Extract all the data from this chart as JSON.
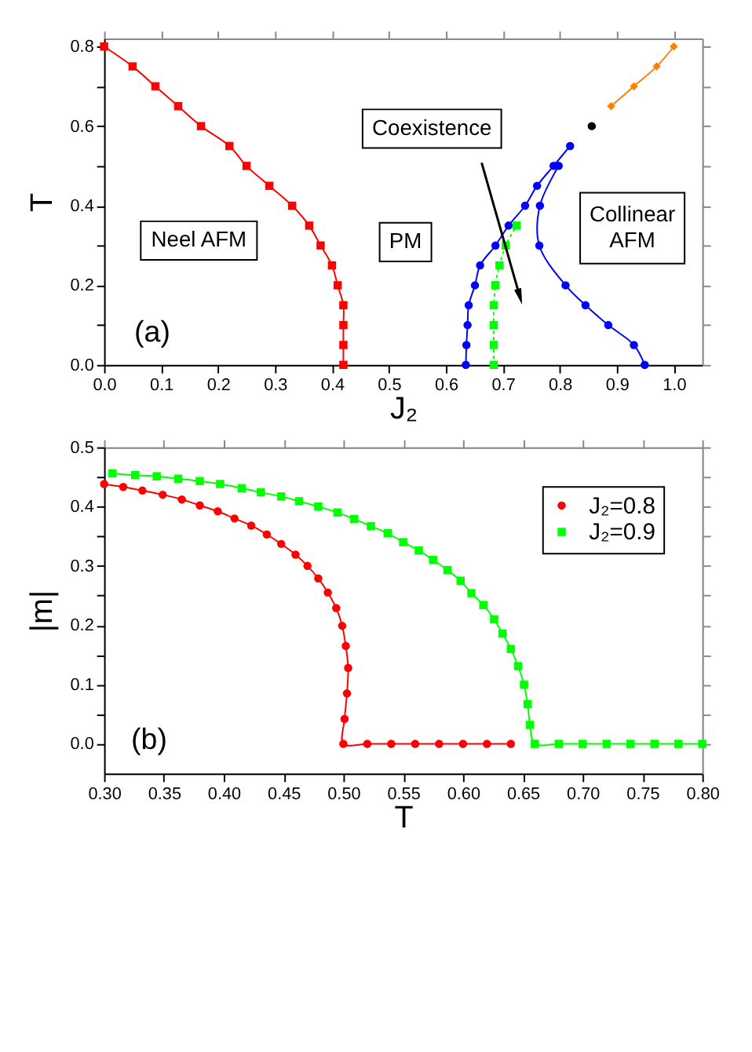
{
  "chart_data": [
    {
      "type": "line",
      "xlabel": "J₂",
      "ylabel": "T",
      "xlim": [
        0,
        1.05
      ],
      "ylim": [
        0,
        0.82
      ],
      "xticks": [
        {
          "value": 0,
          "label": "0.0"
        },
        0.1,
        0.2,
        0.3,
        0.4,
        0.5,
        0.6,
        0.7,
        0.8,
        0.9,
        {
          "value": 1,
          "label": "1.0"
        }
      ],
      "yticks": [
        {
          "value": 0,
          "label": "0.0"
        },
        {
          "value": 0.1,
          "label": null
        },
        0.2,
        {
          "value": 0.3,
          "label": null
        },
        0.4,
        {
          "value": 0.5,
          "label": null
        },
        0.6,
        {
          "value": 0.7,
          "label": null
        },
        0.8
      ],
      "annotations": [
        "Coexistence",
        "Neel AFM",
        "PM",
        "Collinear\nAFM",
        "(a)"
      ],
      "series": [
        {
          "color": "#ff0000",
          "marker": "square",
          "x": [
            0,
            0.05,
            0.09,
            0.13,
            0.17,
            0.22,
            0.25,
            0.29,
            0.33,
            0.36,
            0.38,
            0.4,
            0.41,
            0.42,
            0.42,
            0.42,
            0.42
          ],
          "values": [
            0.8,
            0.75,
            0.7,
            0.65,
            0.6,
            0.55,
            0.5,
            0.45,
            0.4,
            0.35,
            0.3,
            0.25,
            0.2,
            0.15,
            0.1,
            0.05,
            0
          ]
        },
        {
          "color": "#0000ff",
          "marker": "circle",
          "x": [
            0.635,
            0.636,
            0.638,
            0.64,
            0.651,
            0.66,
            0.687,
            0.71,
            0.739,
            0.76,
            0.789,
            0.818
          ],
          "values": [
            0,
            0.05,
            0.1,
            0.15,
            0.2,
            0.25,
            0.3,
            0.35,
            0.4,
            0.45,
            0.5,
            0.55
          ]
        },
        {
          "color": "#0000ff",
          "marker": "circle",
          "x": [
            0.798,
            0.765,
            0.764,
            0.81,
            0.845,
            0.885,
            0.93,
            0.949
          ],
          "values": [
            0.5,
            0.4,
            0.3,
            0.2,
            0.15,
            0.1,
            0.05,
            0
          ]
        },
        {
          "color": "#00ff00",
          "marker": "square",
          "line_style": "dotted",
          "x": [
            0.684,
            0.684,
            0.684,
            0.684,
            0.687,
            0.694,
            0.705,
            0.724
          ],
          "values": [
            0,
            0.05,
            0.1,
            0.15,
            0.2,
            0.25,
            0.3,
            0.35
          ]
        },
        {
          "color": "#ff8000",
          "marker": "diamond",
          "x": [
            0.89,
            0.93,
            0.97,
            1.0
          ],
          "values": [
            0.65,
            0.7,
            0.75,
            0.8
          ]
        },
        {
          "type": "scatter",
          "color": "#000000",
          "marker": "circle",
          "x": [
            0.856
          ],
          "values": [
            0.6
          ]
        }
      ]
    },
    {
      "type": "line",
      "xlabel": "T",
      "ylabel": "|m|",
      "xlim": [
        0.3,
        0.8
      ],
      "ylim": [
        -0.05,
        0.5
      ],
      "legend": "top right",
      "xticks": [
        {
          "value": 0.3,
          "label": "0.30"
        },
        0.35,
        {
          "value": 0.4,
          "label": "0.40"
        },
        0.45,
        {
          "value": 0.5,
          "label": "0.50"
        },
        0.55,
        {
          "value": 0.6,
          "label": "0.60"
        },
        0.65,
        {
          "value": 0.7,
          "label": "0.70"
        },
        0.75,
        {
          "value": 0.8,
          "label": "0.80"
        }
      ],
      "yticks": [
        {
          "value": 0,
          "label": "0.0"
        },
        {
          "value": 0.05,
          "label": null
        },
        0.1,
        {
          "value": 0.15,
          "label": null
        },
        0.2,
        {
          "value": 0.25,
          "label": null
        },
        0.3,
        {
          "value": 0.35,
          "label": null
        },
        0.4,
        {
          "value": 0.45,
          "label": null
        },
        0.5
      ],
      "annotations": [
        "(b)"
      ],
      "series": [
        {
          "name": "J₂=0.8",
          "color": "#ff0000",
          "marker": "circle",
          "x": [
            0.3,
            0.316,
            0.332,
            0.349,
            0.365,
            0.38,
            0.395,
            0.409,
            0.423,
            0.436,
            0.448,
            0.46,
            0.47,
            0.479,
            0.487,
            0.494,
            0.499,
            0.502,
            0.504,
            0.503,
            0.501,
            0.5,
            0.52,
            0.54,
            0.56,
            0.58,
            0.6,
            0.62,
            0.64
          ],
          "values": [
            0.438,
            0.433,
            0.427,
            0.42,
            0.412,
            0.402,
            0.392,
            0.38,
            0.368,
            0.353,
            0.337,
            0.319,
            0.3,
            0.279,
            0.255,
            0.229,
            0.199,
            0.165,
            0.128,
            0.085,
            0.042,
            0,
            0,
            0,
            0,
            0,
            0,
            0,
            0
          ]
        },
        {
          "name": "J₂=0.9",
          "color": "#00ff00",
          "marker": "square",
          "x": [
            0.307,
            0.326,
            0.344,
            0.362,
            0.38,
            0.397,
            0.415,
            0.431,
            0.448,
            0.463,
            0.479,
            0.495,
            0.509,
            0.523,
            0.537,
            0.55,
            0.563,
            0.575,
            0.587,
            0.598,
            0.607,
            0.617,
            0.626,
            0.633,
            0.64,
            0.646,
            0.651,
            0.654,
            0.656,
            0.66,
            0.68,
            0.7,
            0.72,
            0.74,
            0.76,
            0.78,
            0.8
          ],
          "values": [
            0.456,
            0.453,
            0.451,
            0.447,
            0.443,
            0.438,
            0.431,
            0.424,
            0.417,
            0.409,
            0.4,
            0.39,
            0.379,
            0.367,
            0.355,
            0.34,
            0.326,
            0.31,
            0.293,
            0.275,
            0.254,
            0.234,
            0.21,
            0.186,
            0.16,
            0.131,
            0.1,
            0.067,
            0.032,
            0,
            0,
            0,
            0,
            0,
            0,
            0,
            0
          ]
        }
      ]
    }
  ]
}
